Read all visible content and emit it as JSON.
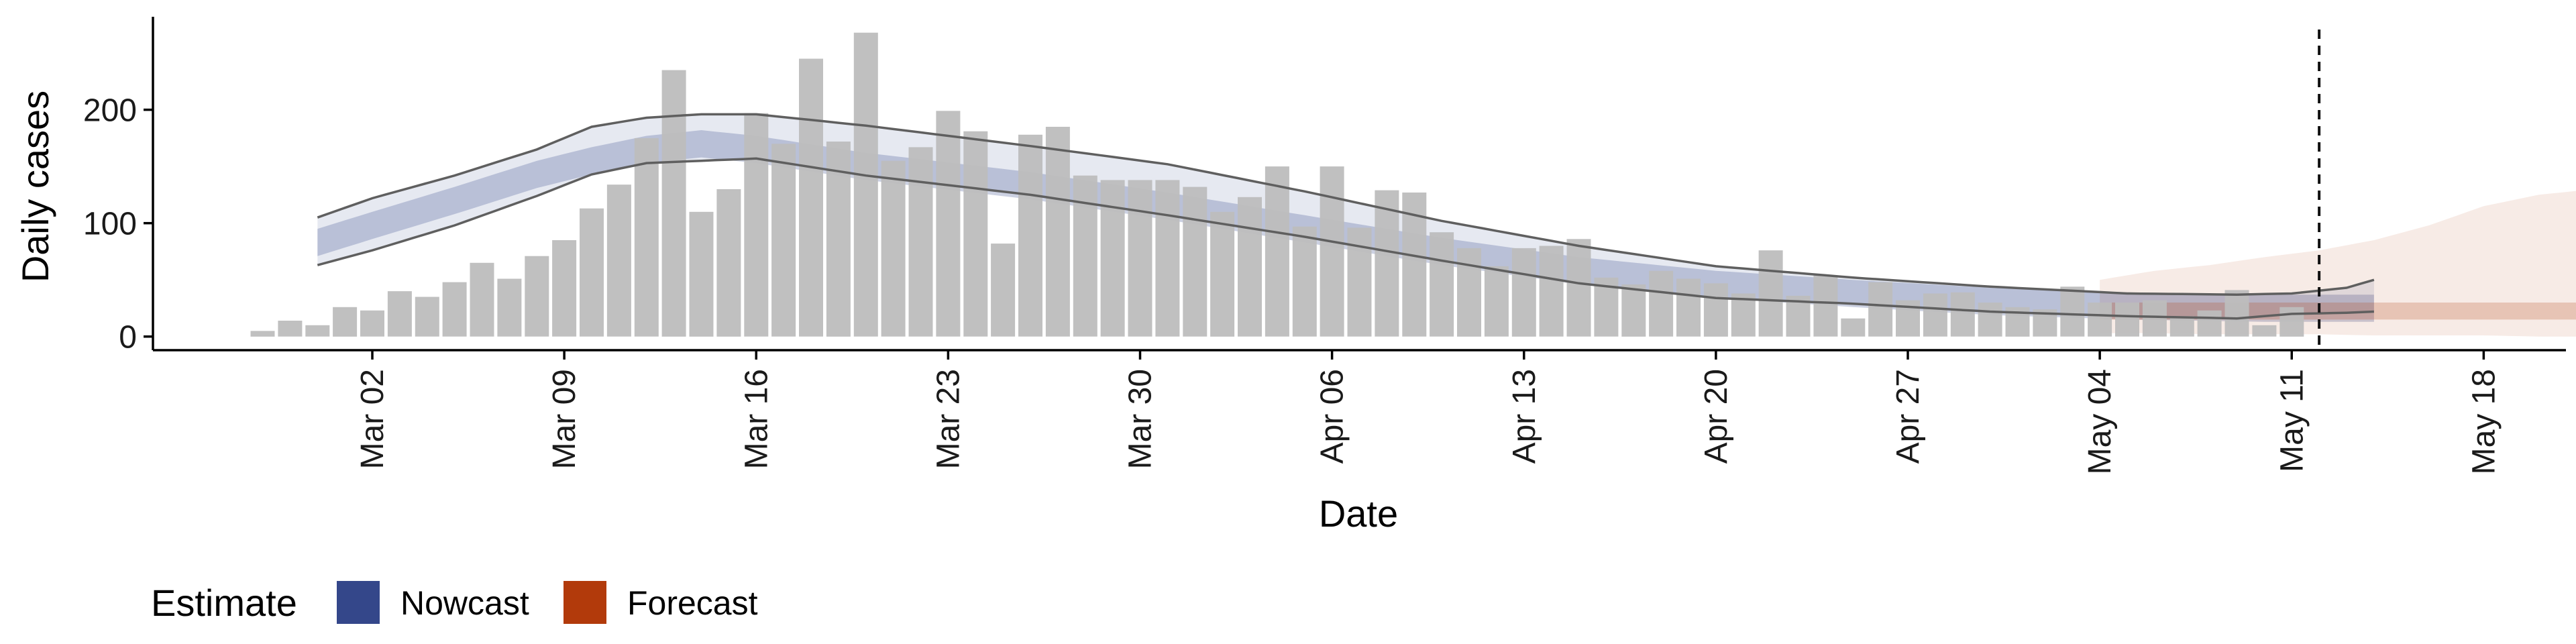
{
  "chart_data": {
    "type": "bar",
    "xlabel": "Date",
    "ylabel": "Daily cases",
    "y_ticks": [
      0,
      100,
      200
    ],
    "ylim": [
      -12,
      282
    ],
    "x_range": [
      "2020-02-23",
      "2020-05-21"
    ],
    "x_tick_labels": [
      {
        "date": "2020-03-02",
        "label": "Mar 02"
      },
      {
        "date": "2020-03-09",
        "label": "Mar 09"
      },
      {
        "date": "2020-03-16",
        "label": "Mar 16"
      },
      {
        "date": "2020-03-23",
        "label": "Mar 23"
      },
      {
        "date": "2020-03-30",
        "label": "Mar 30"
      },
      {
        "date": "2020-04-06",
        "label": "Apr 06"
      },
      {
        "date": "2020-04-13",
        "label": "Apr 13"
      },
      {
        "date": "2020-04-20",
        "label": "Apr 20"
      },
      {
        "date": "2020-04-27",
        "label": "Apr 27"
      },
      {
        "date": "2020-05-04",
        "label": "May 04"
      },
      {
        "date": "2020-05-11",
        "label": "May 11"
      },
      {
        "date": "2020-05-18",
        "label": "May 18"
      }
    ],
    "observed": {
      "start_date": "2020-02-27",
      "color": "#bdbdbd",
      "values": [
        5,
        14,
        10,
        26,
        23,
        40,
        35,
        48,
        65,
        51,
        71,
        85,
        113,
        134,
        175,
        235,
        110,
        130,
        197,
        170,
        245,
        172,
        268,
        155,
        167,
        199,
        181,
        82,
        178,
        185,
        142,
        138,
        138,
        138,
        132,
        110,
        123,
        150,
        97,
        150,
        96,
        129,
        127,
        92,
        78,
        62,
        78,
        80,
        86,
        52,
        46,
        58,
        51,
        47,
        38,
        76,
        36,
        54,
        16,
        48,
        32,
        38,
        39,
        30,
        26,
        24,
        44,
        30,
        30,
        32,
        18,
        23,
        41,
        10,
        26
      ]
    },
    "nowcast": {
      "color": "#34478a",
      "start_date": "2020-02-29",
      "end_date": "2020-05-04",
      "median_knots": [
        [
          0,
          83
        ],
        [
          2,
          98
        ],
        [
          5,
          120
        ],
        [
          8,
          143
        ],
        [
          10,
          155
        ],
        [
          12,
          165
        ],
        [
          14,
          170
        ],
        [
          16,
          165
        ],
        [
          20,
          150
        ],
        [
          26,
          133
        ],
        [
          31,
          115
        ],
        [
          36,
          95
        ],
        [
          41,
          75
        ],
        [
          46,
          58
        ],
        [
          51,
          46
        ],
        [
          56,
          38
        ],
        [
          61,
          31
        ],
        [
          66,
          27
        ],
        [
          71,
          25
        ],
        [
          75,
          25
        ]
      ],
      "inner_halfwidth": 12,
      "outer_knots": [
        [
          0,
          63,
          105
        ],
        [
          2,
          76,
          122
        ],
        [
          5,
          98,
          142
        ],
        [
          8,
          124,
          165
        ],
        [
          10,
          143,
          185
        ],
        [
          12,
          153,
          193
        ],
        [
          14,
          155,
          196
        ],
        [
          16,
          157,
          196
        ],
        [
          20,
          142,
          186
        ],
        [
          26,
          125,
          168
        ],
        [
          31,
          107,
          152
        ],
        [
          36,
          88,
          128
        ],
        [
          41,
          67,
          102
        ],
        [
          46,
          47,
          80
        ],
        [
          51,
          34,
          62
        ],
        [
          56,
          29,
          52
        ],
        [
          61,
          22,
          44
        ],
        [
          66,
          18,
          38
        ],
        [
          70,
          16,
          37
        ],
        [
          72,
          20,
          38
        ],
        [
          74,
          21,
          43
        ],
        [
          75,
          22,
          50
        ]
      ]
    },
    "forecast": {
      "color": "#b23a0b",
      "start_date": "2020-05-04",
      "end_date": "2020-05-18",
      "inner_band": [
        15,
        30
      ],
      "outer_knots": [
        [
          0,
          3,
          50
        ],
        [
          2,
          3,
          58
        ],
        [
          4,
          2,
          63
        ],
        [
          6,
          2,
          70
        ],
        [
          8,
          2,
          76
        ],
        [
          10,
          1,
          85
        ],
        [
          12,
          1,
          98
        ],
        [
          14,
          1,
          115
        ],
        [
          16,
          0,
          125
        ],
        [
          18,
          0,
          130
        ]
      ]
    },
    "vline_date": "2020-05-12",
    "legend": {
      "title": "Estimate",
      "entries": [
        {
          "label": "Nowcast",
          "color": "#34478a"
        },
        {
          "label": "Forecast",
          "color": "#b23a0b"
        }
      ]
    }
  }
}
